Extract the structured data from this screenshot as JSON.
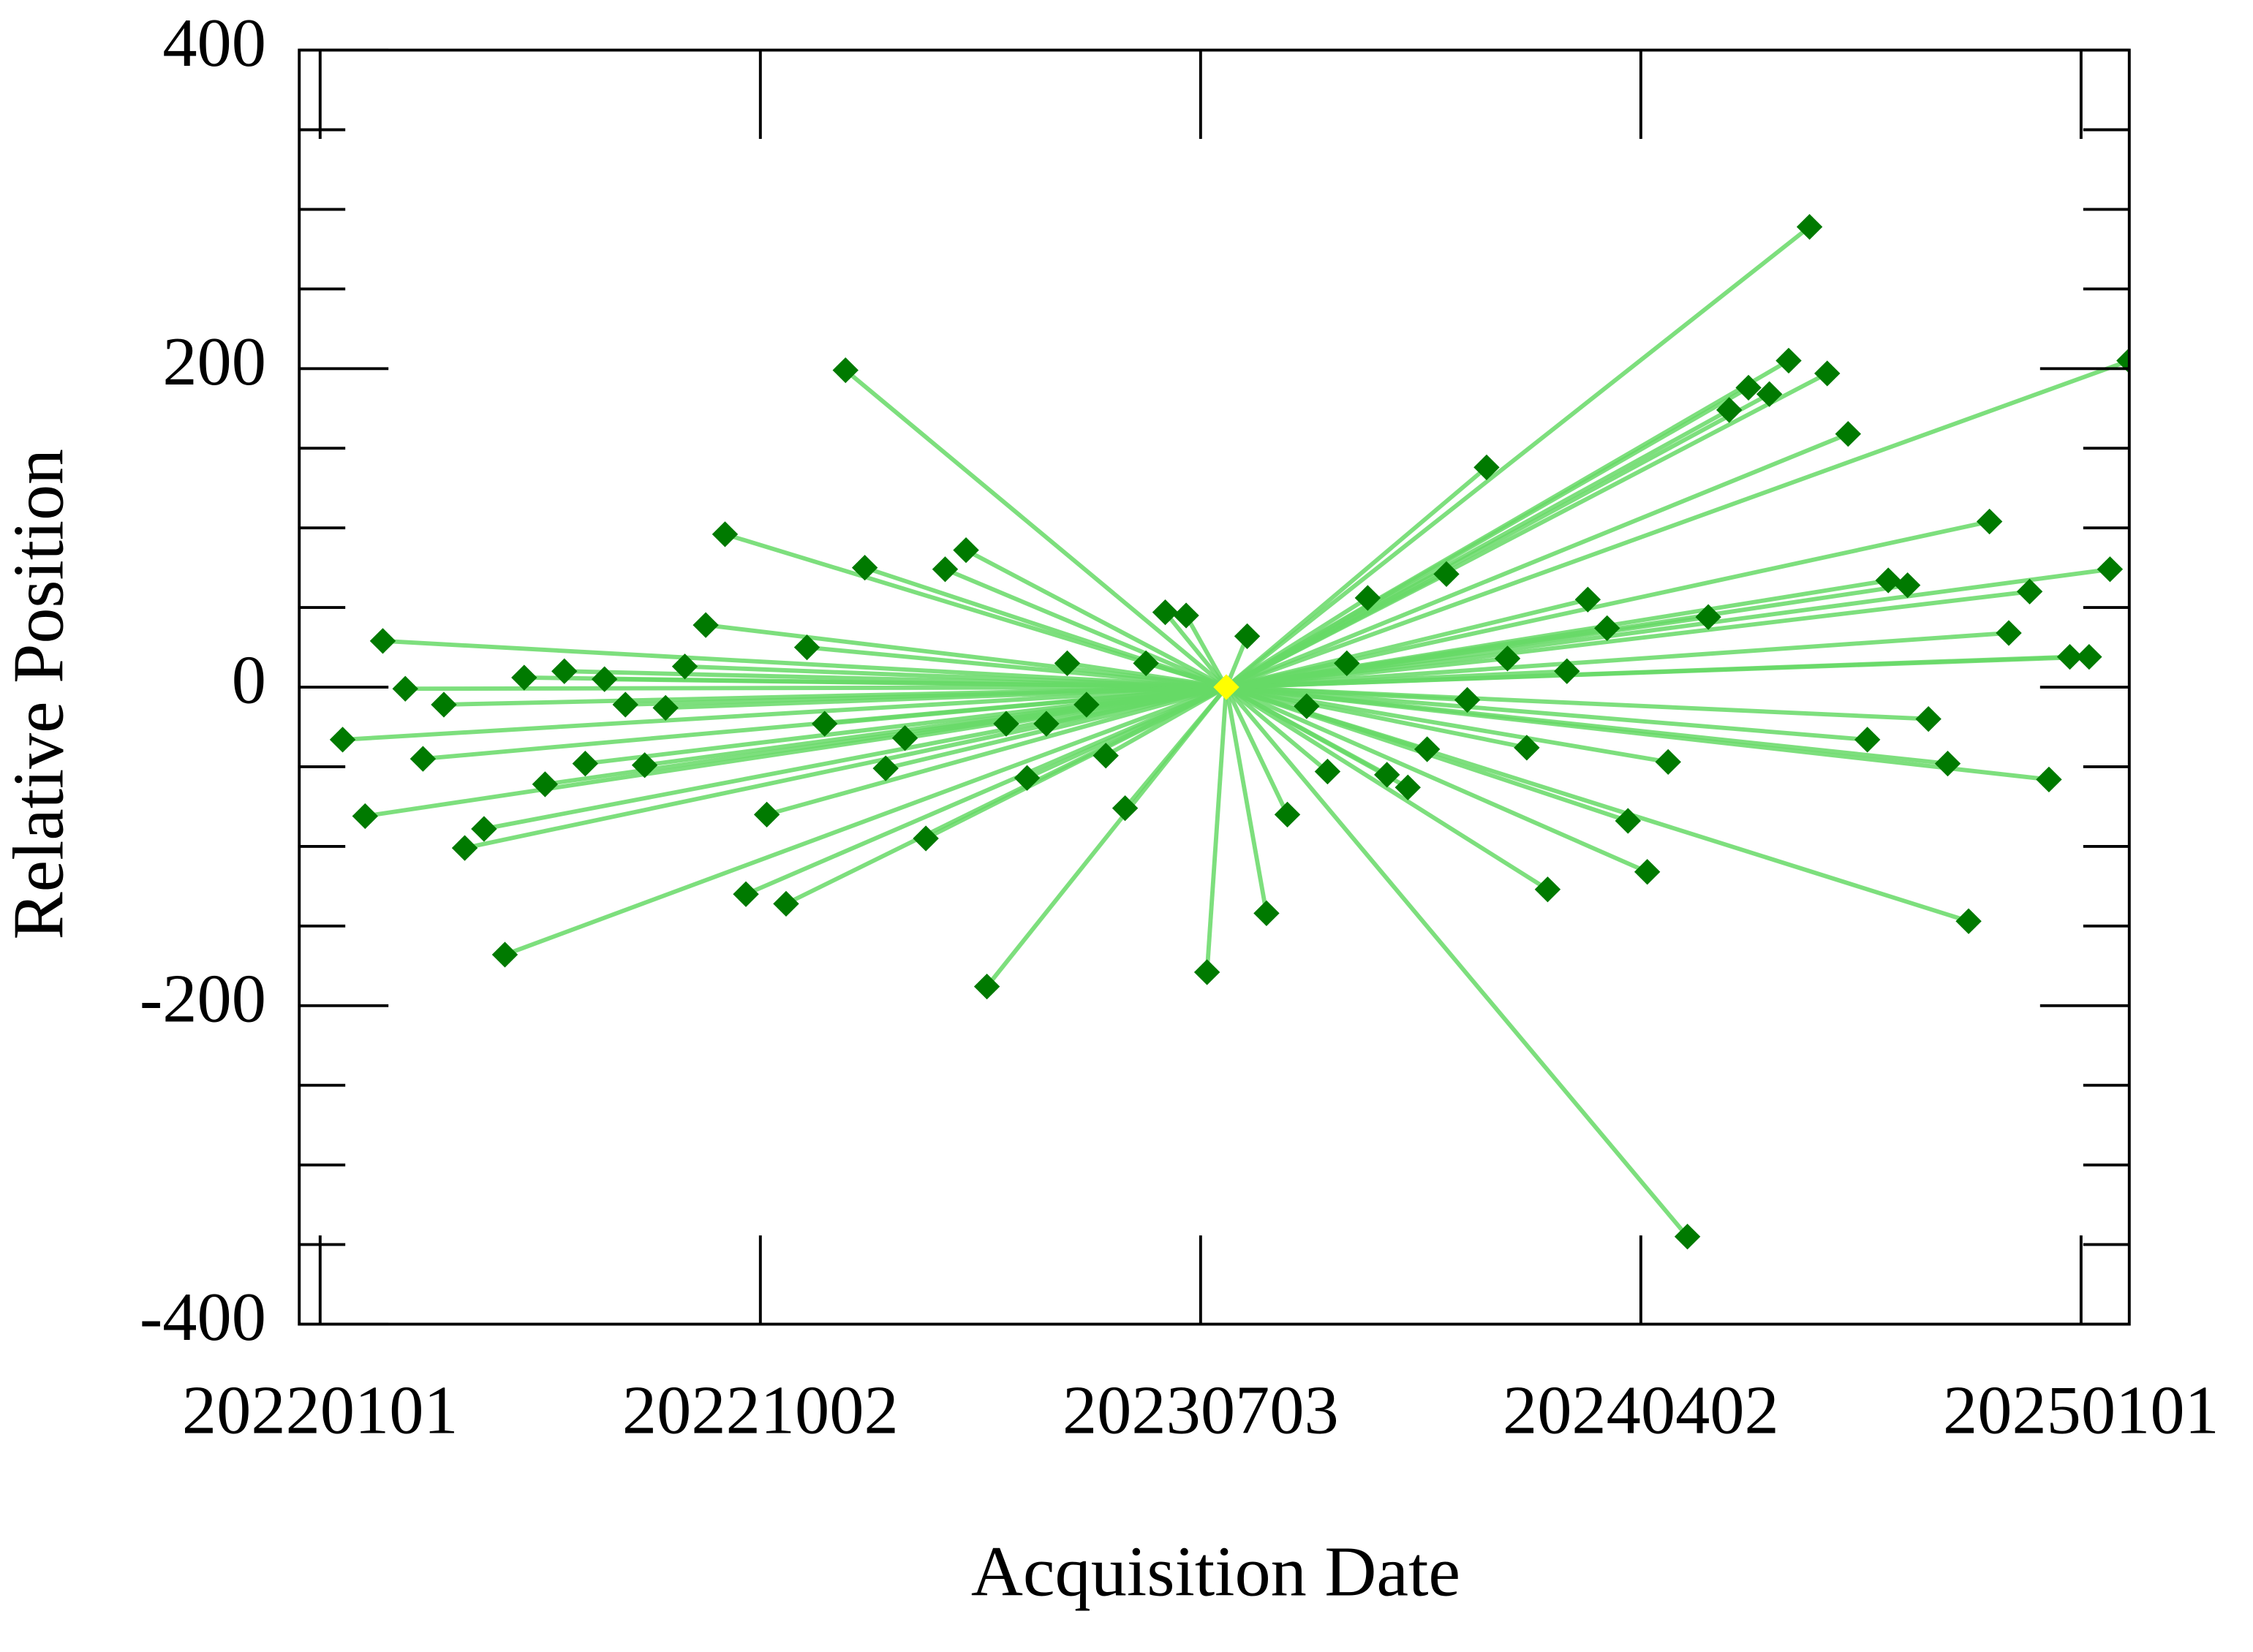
{
  "chart_data": {
    "type": "scatter",
    "xlabel": "Acquisition Date",
    "ylabel": "Relative Position",
    "xlim": [
      "20211219",
      "20250131"
    ],
    "xticks": [
      "20220101",
      "20221002",
      "20230703",
      "20240402",
      "20250101"
    ],
    "ylim": [
      -400,
      400
    ],
    "yticks": [
      -400,
      -200,
      0,
      200,
      400
    ],
    "yminorticks": [
      -350,
      -300,
      -250,
      -150,
      -100,
      -50,
      50,
      100,
      150,
      250,
      300,
      350
    ],
    "reference": {
      "x": "20230719",
      "y": 0,
      "color": "#ffff00"
    },
    "line_color": "#66d966",
    "series": [
      {
        "color": "#007a00",
        "x": [
          "20220115",
          "20220129",
          "20220209",
          "20220223",
          "20220306",
          "20220319",
          "20220401",
          "20220413",
          "20220426",
          "20220508",
          "20220521",
          "20220602",
          "20220615",
          "20220627",
          "20220710",
          "20220722",
          "20220804",
          "20220816",
          "20220829",
          "20220910",
          "20220923",
          "20221006",
          "20221018",
          "20221031",
          "20221111",
          "20221124",
          "20221206",
          "20221219",
          "20221231",
          "20230113",
          "20230125",
          "20230207",
          "20230220",
          "20230304",
          "20230317",
          "20230329",
          "20230411",
          "20230423",
          "20230505",
          "20230517",
          "20230530",
          "20230611",
          "20230624",
          "20230707",
          "20230801",
          "20230813",
          "20230826",
          "20230907",
          "20230920",
          "20231002",
          "20231015",
          "20231027",
          "20231109",
          "20231121",
          "20231203",
          "20231216",
          "20231228",
          "20240110",
          "20240122",
          "20240204",
          "20240216",
          "20240229",
          "20240312",
          "20240325",
          "20240406",
          "20240419",
          "20240501",
          "20240514",
          "20240527",
          "20240608",
          "20240621",
          "20240703",
          "20240716",
          "20240727",
          "20240809",
          "20240821",
          "20240903",
          "20240915",
          "20240928",
          "20241010",
          "20241023",
          "20241105",
          "20241117",
          "20241130",
          "20241212",
          "20241225",
          "20250106",
          "20250119",
          "20250131"
        ],
        "values": [
          -33,
          -81,
          29,
          -1,
          -45,
          -11,
          -101,
          -89,
          -168,
          6,
          -61,
          10,
          -48,
          5,
          -11,
          -49,
          -13,
          13,
          39,
          96,
          -130,
          -80,
          -136,
          25,
          -23,
          199,
          75,
          -51,
          -32,
          -95,
          74,
          86,
          -188,
          -23,
          -57,
          -23,
          15,
          -11,
          -43,
          -76,
          15,
          47,
          45,
          -179,
          32,
          -142,
          -80,
          -12,
          -53,
          15,
          56,
          -55,
          -63,
          -39,
          71,
          -8,
          138,
          18,
          -38,
          -127,
          10,
          55,
          37,
          -84,
          -116,
          -47,
          -345,
          44,
          174,
          188,
          184,
          205,
          289,
          197,
          159,
          -33,
          67,
          64,
          -20,
          -48,
          -147,
          104,
          34,
          60,
          -58,
          19,
          19,
          74,
          205
        ]
      }
    ]
  }
}
